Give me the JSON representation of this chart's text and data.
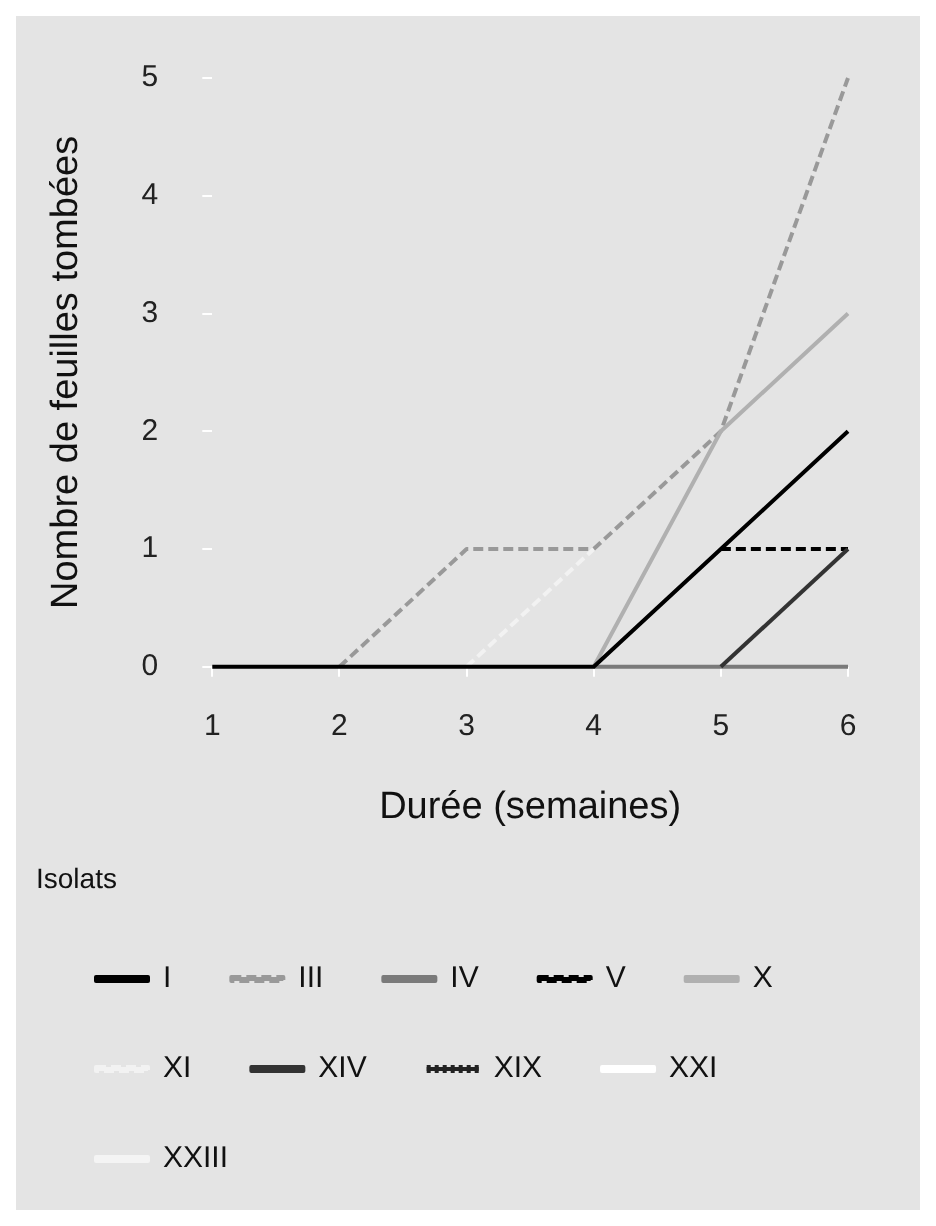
{
  "chart_data": {
    "type": "line",
    "xlabel": "Durée (semaines)",
    "ylabel": "Nombre de feuilles tombées",
    "legend_title": "Isolats",
    "legend": "bottom",
    "grid": false,
    "marker": "none",
    "x": [
      1,
      2,
      3,
      4,
      5,
      6
    ],
    "xlim": [
      1,
      6
    ],
    "xticks": [
      1,
      2,
      3,
      4,
      5,
      6
    ],
    "ylim": [
      0,
      5
    ],
    "yticks": [
      0,
      1,
      2,
      3,
      4,
      5
    ],
    "series": [
      {
        "name": "I",
        "color": "#000000",
        "line_style": "solid",
        "values": [
          0,
          0,
          0,
          0,
          1,
          2
        ]
      },
      {
        "name": "III",
        "color": "#999999",
        "line_style": "dashed",
        "values": [
          null,
          0,
          1,
          1,
          2,
          5
        ]
      },
      {
        "name": "IV",
        "color": "#7a7a7a",
        "line_style": "solid",
        "values": [
          null,
          null,
          null,
          0,
          0,
          0
        ]
      },
      {
        "name": "V",
        "color": "#000000",
        "line_style": "dashed",
        "values": [
          null,
          null,
          null,
          null,
          1,
          1
        ]
      },
      {
        "name": "X",
        "color": "#b0b0b0",
        "line_style": "solid",
        "values": [
          null,
          null,
          null,
          0,
          2,
          3
        ]
      },
      {
        "name": "XI",
        "color": "#f2f2f2",
        "line_style": "dashed",
        "values": [
          null,
          null,
          0,
          1,
          null,
          null
        ]
      },
      {
        "name": "XIV",
        "color": "#333333",
        "line_style": "solid",
        "values": [
          null,
          null,
          null,
          null,
          0,
          1
        ]
      },
      {
        "name": "XIX",
        "color": "#222222",
        "line_style": "dotted",
        "values": [
          null,
          null,
          null,
          null,
          null,
          null
        ]
      },
      {
        "name": "XXI",
        "color": "#ffffff",
        "line_style": "solid",
        "values": [
          null,
          null,
          null,
          null,
          null,
          null
        ]
      },
      {
        "name": "XXIII",
        "color": "#f4f4f4",
        "line_style": "solid",
        "values": [
          null,
          null,
          null,
          null,
          null,
          null
        ]
      }
    ]
  }
}
